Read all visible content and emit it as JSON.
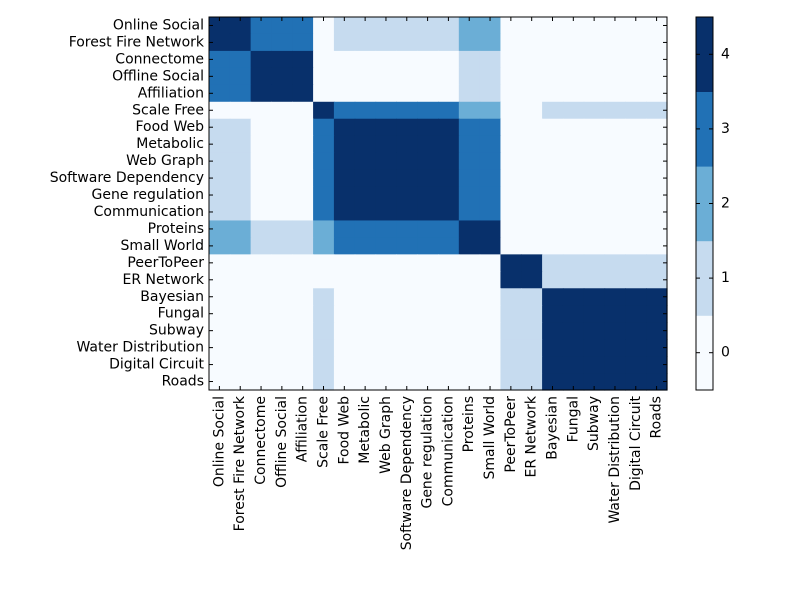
{
  "chart_data": {
    "type": "heatmap",
    "title": "",
    "xlabel": "",
    "ylabel": "",
    "labels": [
      "Online Social",
      "Forest Fire Network",
      "Connectome",
      "Offline Social",
      "Affiliation",
      "Scale Free",
      "Food Web",
      "Metabolic",
      "Web Graph",
      "Software Dependency",
      "Gene regulation",
      "Communication",
      "Proteins",
      "Small World",
      "PeerToPeer",
      "ER Network",
      "Bayesian",
      "Fungal",
      "Subway",
      "Water Distribution",
      "Digital Circuit",
      "Roads"
    ],
    "matrix": [
      [
        4,
        4,
        3,
        3,
        3,
        0,
        1,
        1,
        1,
        1,
        1,
        1,
        2,
        2,
        0,
        0,
        0,
        0,
        0,
        0,
        0,
        0
      ],
      [
        4,
        4,
        3,
        3,
        3,
        0,
        1,
        1,
        1,
        1,
        1,
        1,
        2,
        2,
        0,
        0,
        0,
        0,
        0,
        0,
        0,
        0
      ],
      [
        3,
        3,
        4,
        4,
        4,
        0,
        0,
        0,
        0,
        0,
        0,
        0,
        1,
        1,
        0,
        0,
        0,
        0,
        0,
        0,
        0,
        0
      ],
      [
        3,
        3,
        4,
        4,
        4,
        0,
        0,
        0,
        0,
        0,
        0,
        0,
        1,
        1,
        0,
        0,
        0,
        0,
        0,
        0,
        0,
        0
      ],
      [
        3,
        3,
        4,
        4,
        4,
        0,
        0,
        0,
        0,
        0,
        0,
        0,
        1,
        1,
        0,
        0,
        0,
        0,
        0,
        0,
        0,
        0
      ],
      [
        0,
        0,
        0,
        0,
        0,
        4,
        3,
        3,
        3,
        3,
        3,
        3,
        2,
        2,
        0,
        0,
        1,
        1,
        1,
        1,
        1,
        1
      ],
      [
        1,
        1,
        0,
        0,
        0,
        3,
        4,
        4,
        4,
        4,
        4,
        4,
        3,
        3,
        0,
        0,
        0,
        0,
        0,
        0,
        0,
        0
      ],
      [
        1,
        1,
        0,
        0,
        0,
        3,
        4,
        4,
        4,
        4,
        4,
        4,
        3,
        3,
        0,
        0,
        0,
        0,
        0,
        0,
        0,
        0
      ],
      [
        1,
        1,
        0,
        0,
        0,
        3,
        4,
        4,
        4,
        4,
        4,
        4,
        3,
        3,
        0,
        0,
        0,
        0,
        0,
        0,
        0,
        0
      ],
      [
        1,
        1,
        0,
        0,
        0,
        3,
        4,
        4,
        4,
        4,
        4,
        4,
        3,
        3,
        0,
        0,
        0,
        0,
        0,
        0,
        0,
        0
      ],
      [
        1,
        1,
        0,
        0,
        0,
        3,
        4,
        4,
        4,
        4,
        4,
        4,
        3,
        3,
        0,
        0,
        0,
        0,
        0,
        0,
        0,
        0
      ],
      [
        1,
        1,
        0,
        0,
        0,
        3,
        4,
        4,
        4,
        4,
        4,
        4,
        3,
        3,
        0,
        0,
        0,
        0,
        0,
        0,
        0,
        0
      ],
      [
        2,
        2,
        1,
        1,
        1,
        2,
        3,
        3,
        3,
        3,
        3,
        3,
        4,
        4,
        0,
        0,
        0,
        0,
        0,
        0,
        0,
        0
      ],
      [
        2,
        2,
        1,
        1,
        1,
        2,
        3,
        3,
        3,
        3,
        3,
        3,
        4,
        4,
        0,
        0,
        0,
        0,
        0,
        0,
        0,
        0
      ],
      [
        0,
        0,
        0,
        0,
        0,
        0,
        0,
        0,
        0,
        0,
        0,
        0,
        0,
        0,
        4,
        4,
        1,
        1,
        1,
        1,
        1,
        1
      ],
      [
        0,
        0,
        0,
        0,
        0,
        0,
        0,
        0,
        0,
        0,
        0,
        0,
        0,
        0,
        4,
        4,
        1,
        1,
        1,
        1,
        1,
        1
      ],
      [
        0,
        0,
        0,
        0,
        0,
        1,
        0,
        0,
        0,
        0,
        0,
        0,
        0,
        0,
        1,
        1,
        4,
        4,
        4,
        4,
        4,
        4
      ],
      [
        0,
        0,
        0,
        0,
        0,
        1,
        0,
        0,
        0,
        0,
        0,
        0,
        0,
        0,
        1,
        1,
        4,
        4,
        4,
        4,
        4,
        4
      ],
      [
        0,
        0,
        0,
        0,
        0,
        1,
        0,
        0,
        0,
        0,
        0,
        0,
        0,
        0,
        1,
        1,
        4,
        4,
        4,
        4,
        4,
        4
      ],
      [
        0,
        0,
        0,
        0,
        0,
        1,
        0,
        0,
        0,
        0,
        0,
        0,
        0,
        0,
        1,
        1,
        4,
        4,
        4,
        4,
        4,
        4
      ],
      [
        0,
        0,
        0,
        0,
        0,
        1,
        0,
        0,
        0,
        0,
        0,
        0,
        0,
        0,
        1,
        1,
        4,
        4,
        4,
        4,
        4,
        4
      ],
      [
        0,
        0,
        0,
        0,
        0,
        1,
        0,
        0,
        0,
        0,
        0,
        0,
        0,
        0,
        1,
        1,
        4,
        4,
        4,
        4,
        4,
        4
      ]
    ],
    "colorbar": {
      "levels": [
        0,
        1,
        2,
        3,
        4
      ],
      "colors": [
        "#f7fbff",
        "#c6dbef",
        "#6baed6",
        "#2171b5",
        "#08306b"
      ],
      "ticks": [
        "0",
        "1",
        "2",
        "3",
        "4"
      ],
      "range": [
        -0.5,
        4.5
      ]
    },
    "grid": false,
    "legend": "colorbar-right"
  }
}
